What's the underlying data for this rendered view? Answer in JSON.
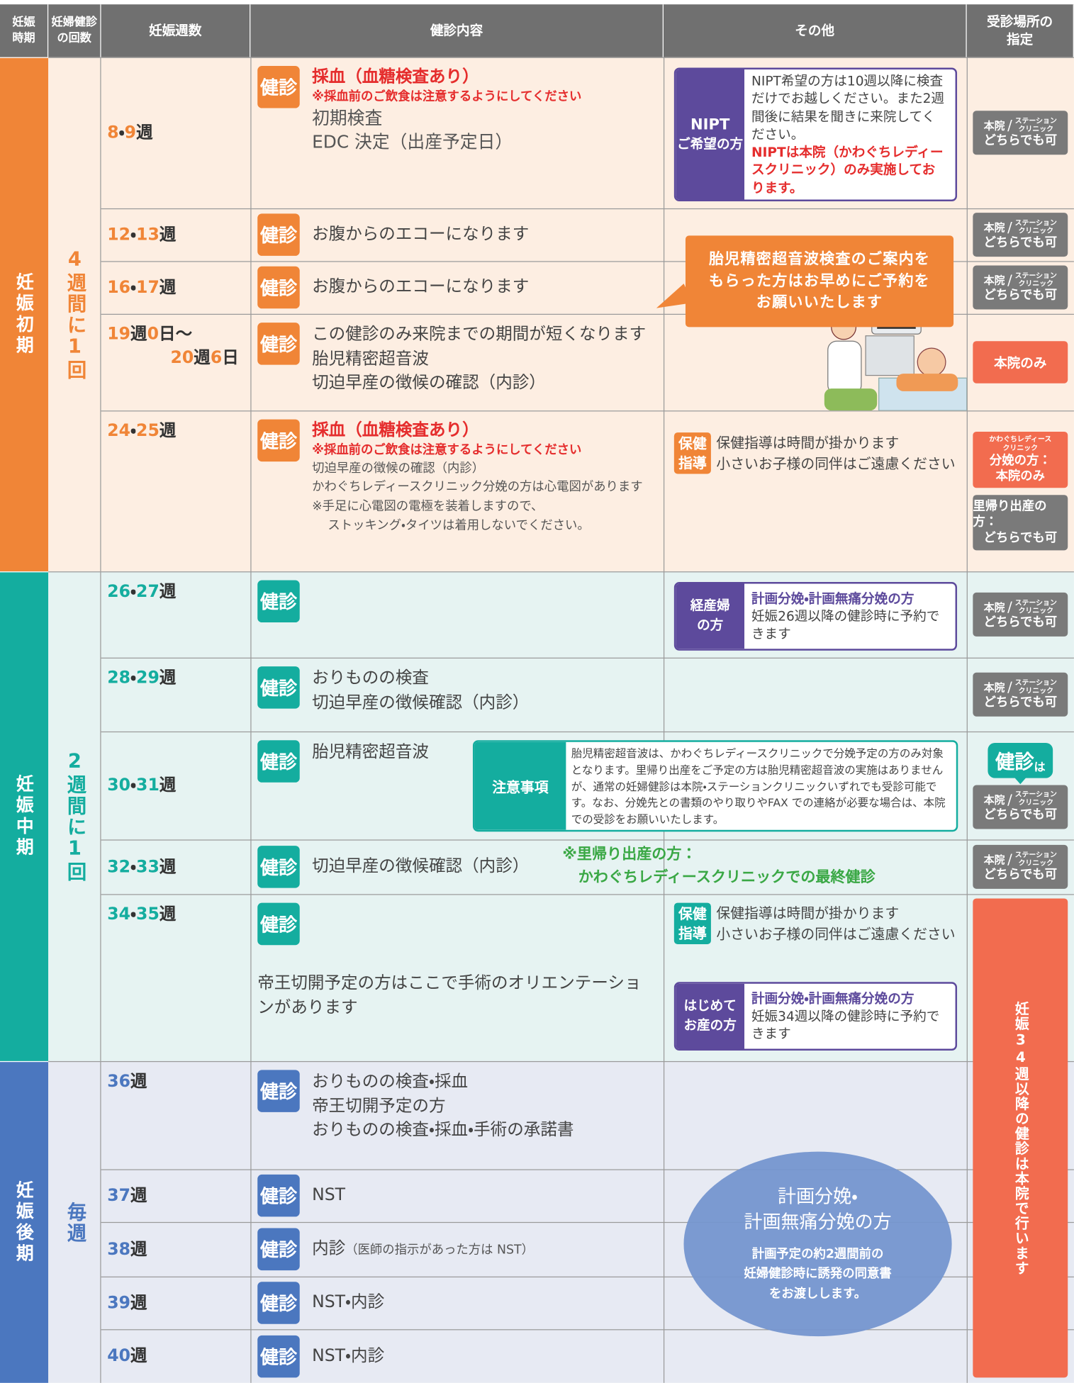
{
  "header": [
    [
      "妊娠",
      "時期"
    ],
    [
      "妊婦健診",
      "の回数"
    ],
    [
      "妊娠週数"
    ],
    [
      "健診内容"
    ],
    [
      "その他"
    ],
    [
      "受診場所の",
      "指定"
    ]
  ],
  "periods": [
    {
      "name": "妊娠初期",
      "frequency": "4週間に1回",
      "color": "#f08537",
      "background": "#fdeee2"
    },
    {
      "name": "妊娠中期",
      "frequency": "2週間に1回",
      "color": "#14ad9f",
      "background": "#e6f3f2"
    },
    {
      "name": "妊娠後期",
      "frequency": "毎週",
      "color": "#4b77bf",
      "background": "#e7eaf3"
    }
  ],
  "rows": [
    {
      "weeks": [
        "8・9週"
      ],
      "badge": "健診",
      "content": [
        {
          "text": "採血（血糖検査あり）",
          "style": "heading"
        },
        {
          "text": "※採血前のご飲食は注意するようにしてください",
          "style": "warning"
        },
        {
          "text": "初期検査",
          "style": "large"
        },
        {
          "text": "EDC 決定（出産予定日）",
          "style": "large"
        }
      ],
      "other": [
        {
          "label": [
            "NIPT",
            "ご希望の方"
          ],
          "text": "NIPT希望の方は10週以降に検査だけでお越しください。また2週間後に結果を聞きに来院してください。",
          "red": "NIPTは本院（かわぐちレディースクリニック）のみ実施しております。"
        }
      ],
      "place": [
        {
          "clinic": "本院",
          "station": [
            "ステーション",
            "クリニック"
          ],
          "note": "どちらでも可"
        }
      ]
    },
    {
      "weeks": [
        "12・13週"
      ],
      "badge": "健診",
      "content": [
        {
          "text": "お腹からのエコーになります",
          "style": "normal"
        }
      ],
      "other": [],
      "place": [
        {
          "clinic": "本院",
          "station": [
            "ステーション",
            "クリニック"
          ],
          "note": "どちらでも可"
        }
      ]
    },
    {
      "weeks": [
        "16・17週"
      ],
      "badge": "健診",
      "content": [
        {
          "text": "お腹からのエコーになります",
          "style": "normal"
        }
      ],
      "other": [],
      "place": [
        {
          "clinic": "本院",
          "station": [
            "ステーション",
            "クリニック"
          ],
          "note": "どちらでも可"
        }
      ]
    },
    {
      "weeks": [
        "19週0日～",
        "20週6日"
      ],
      "badge": "健診",
      "content": [
        {
          "text": "この健診のみ来院までの期間が短くなります",
          "style": "normal"
        },
        {
          "text": "胎児精密超音波",
          "style": "normal"
        },
        {
          "text": "切迫早産の徴候の確認（内診）",
          "style": "normal"
        }
      ],
      "other": [],
      "place": [
        {
          "only": "本院のみ"
        }
      ]
    },
    {
      "weeks": [
        "24・25週"
      ],
      "badge": "健診",
      "content": [
        {
          "text": "採血（血糖検査あり）",
          "style": "heading"
        },
        {
          "text": "※採血前のご飲食は注意するようにしてください",
          "style": "warning"
        },
        {
          "text": "切迫早産の徴候の確認（内診）",
          "style": "small"
        },
        {
          "text": "かわぐちレディースクリニック分娩の方は心電図があります",
          "style": "small"
        },
        {
          "text": "※手足に心電図の電極を装着しますので、",
          "style": "small"
        },
        {
          "text": "ストッキング・タイツは着用しないでください。",
          "style": "small-indent"
        }
      ],
      "other": [
        {
          "tag": [
            "保健",
            "指導"
          ],
          "lines": [
            "保健指導は時間が掛かります",
            "小さいお子様の同伴はご遠慮ください"
          ]
        }
      ],
      "place": [
        {
          "lines": [
            "かわぐちレディース",
            "クリニック",
            "分娩の方：",
            "本院のみ"
          ],
          "style": "red"
        },
        {
          "lines": [
            "里帰り出産の方：",
            "どちらでも可"
          ],
          "style": "grey"
        }
      ]
    },
    {
      "weeks": [
        "26・27週"
      ],
      "badge": "健診",
      "content": [],
      "other": [
        {
          "label": [
            "経産婦",
            "の方"
          ],
          "title": "計画分娩・計画無痛分娩の方",
          "text": "妊娠26週以降の健診時に予約できます"
        }
      ],
      "place": [
        {
          "clinic": "本院",
          "station": [
            "ステーション",
            "クリニック"
          ],
          "note": "どちらでも可"
        }
      ]
    },
    {
      "weeks": [
        "28・29週"
      ],
      "badge": "健診",
      "content": [
        {
          "text": "おりものの検査",
          "style": "normal"
        },
        {
          "text": "切迫早産の徴候確認（内診）",
          "style": "normal"
        }
      ],
      "other": [],
      "place": [
        {
          "clinic": "本院",
          "station": [
            "ステーション",
            "クリニック"
          ],
          "note": "どちらでも可"
        }
      ]
    },
    {
      "weeks": [
        "30・31週"
      ],
      "badge": "健診",
      "content": [
        {
          "text": "胎児精密超音波",
          "style": "normal"
        }
      ],
      "other": [
        {
          "notice_label": "注意事項",
          "notice": "胎児精密超音波は、かわぐちレディースクリニックで分娩予定の方のみ対象となります。里帰り出産をご予定の方は胎児精密超音波の実施はありませんが、通常の妊婦健診は本院・ステーションクリニックいずれでも受診可能です。なお、分娩先との書類のやり取りやFAX での連絡が必要な場合は、本院での受診をお願いいたします。"
        }
      ],
      "place": [
        {
          "bubble": "健診",
          "suffix": "は"
        },
        {
          "clinic": "本院",
          "station": [
            "ステーション",
            "クリニック"
          ],
          "note": "どちらでも可"
        }
      ]
    },
    {
      "weeks": [
        "32・33週"
      ],
      "badge": "健診",
      "content": [
        {
          "text": "切迫早産の徴候確認（内診）",
          "style": "normal"
        }
      ],
      "other": [
        {
          "note": [
            "※里帰り出産の方：",
            "かわぐちレディースクリニックでの最終健診"
          ]
        }
      ],
      "place": [
        {
          "clinic": "本院",
          "station": [
            "ステーション",
            "クリニック"
          ],
          "note": "どちらでも可"
        }
      ]
    },
    {
      "weeks": [
        "34・35週"
      ],
      "badge": "健診",
      "content": [
        {
          "text": "帝王切開予定の方はここで手術のオリエンテーションがあります",
          "style": "normal"
        }
      ],
      "other": [
        {
          "tag": [
            "保健",
            "指導"
          ],
          "lines": [
            "保健指導は時間が掛かります",
            "小さいお子様の同伴はご遠慮ください"
          ]
        },
        {
          "label": [
            "はじめて",
            "お産の方"
          ],
          "title": "計画分娩・計画無痛分娩の方",
          "text": "妊娠34週以降の健診時に予約できます"
        }
      ],
      "place": []
    },
    {
      "weeks": [
        "36週"
      ],
      "badge": "健診",
      "content": [
        {
          "text": "おりものの検査・採血",
          "style": "normal"
        },
        {
          "text": "帝王切開予定の方",
          "style": "normal"
        },
        {
          "text": "おりものの検査・採血・手術の承諾書",
          "style": "normal"
        }
      ],
      "other": [],
      "place": []
    },
    {
      "weeks": [
        "37週"
      ],
      "badge": "健診",
      "content": [
        {
          "text": "NST",
          "style": "normal"
        }
      ],
      "other": [],
      "place": []
    },
    {
      "weeks": [
        "38週"
      ],
      "badge": "健診",
      "content": [
        {
          "text": "内診",
          "style": "normal"
        },
        {
          "text": "（医師の指示があった方は NST）",
          "style": "small-inline"
        }
      ],
      "other": [],
      "place": []
    },
    {
      "weeks": [
        "39週"
      ],
      "badge": "健診",
      "content": [
        {
          "text": "NST・内診",
          "style": "normal"
        }
      ],
      "other": [],
      "place": []
    },
    {
      "weeks": [
        "40週"
      ],
      "badge": "健診",
      "content": [
        {
          "text": "NST・内診",
          "style": "normal"
        }
      ],
      "other": [],
      "place": []
    }
  ],
  "callout": [
    "胎児精密超音波検査のご案内を",
    "もらった方はお早めにご予約を",
    "お願いいたします"
  ],
  "circle": {
    "title": [
      "計画分娩・",
      "計画無痛分娩の方"
    ],
    "text": [
      "計画予定の約2週間前の",
      "妊婦健診時に誘発の同意書",
      "をお渡しします。"
    ]
  },
  "late_notice": "妊娠34週以降の健診は本院で行います"
}
